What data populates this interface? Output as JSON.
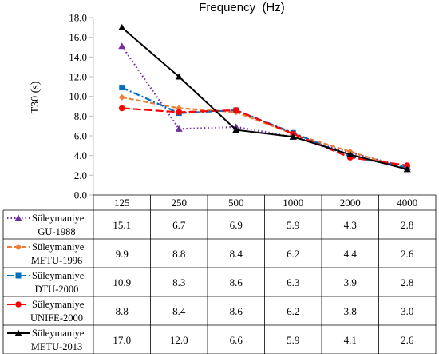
{
  "chart_data": {
    "type": "line",
    "title": "Frequency  (Hz)",
    "ylabel": "T30 (s)",
    "ylim": [
      0,
      18
    ],
    "yticks": [
      "0.0",
      "2.0",
      "4.0",
      "6.0",
      "8.0",
      "10.0",
      "12.0",
      "14.0",
      "16.0",
      "18.0"
    ],
    "categories": [
      "125",
      "250",
      "500",
      "1000",
      "2000",
      "4000"
    ],
    "grid": false,
    "legend": "data-table-left",
    "series": [
      {
        "line1": "Süleymaniye",
        "line2": "GU-1988",
        "color": "#7030A0",
        "marker": "triangle",
        "dash": "dotted",
        "values": [
          15.1,
          6.7,
          6.9,
          5.9,
          4.3,
          2.8
        ],
        "labels": [
          "15.1",
          "6.7",
          "6.9",
          "5.9",
          "4.3",
          "2.8"
        ]
      },
      {
        "line1": "Süleymaniye",
        "line2": "METU-1996",
        "color": "#ED7D31",
        "marker": "diamond",
        "dash": "dashed",
        "values": [
          9.9,
          8.8,
          8.4,
          6.2,
          4.4,
          2.6
        ],
        "labels": [
          "9.9",
          "8.8",
          "8.4",
          "6.2",
          "4.4",
          "2.6"
        ]
      },
      {
        "line1": "Süleymaniye",
        "line2": "DTU-2000",
        "color": "#0070C0",
        "marker": "square",
        "dash": "dashdot",
        "values": [
          10.9,
          8.3,
          8.6,
          6.3,
          3.9,
          2.8
        ],
        "labels": [
          "10.9",
          "8.3",
          "8.6",
          "6.3",
          "3.9",
          "2.8"
        ]
      },
      {
        "line1": "Süleymaniye",
        "line2": "UNIFE-2000",
        "color": "#FF0000",
        "marker": "circle",
        "dash": "longdash",
        "values": [
          8.8,
          8.4,
          8.6,
          6.2,
          3.8,
          3.0
        ],
        "labels": [
          "8.8",
          "8.4",
          "8.6",
          "6.2",
          "3.8",
          "3.0"
        ]
      },
      {
        "line1": "Süleymaniye",
        "line2": "METU-2013",
        "color": "#000000",
        "marker": "triangle",
        "dash": "solid",
        "values": [
          17.0,
          12.0,
          6.6,
          5.9,
          4.1,
          2.6
        ],
        "labels": [
          "17.0",
          "12.0",
          "6.6",
          "5.9",
          "4.1",
          "2.6"
        ]
      }
    ]
  }
}
